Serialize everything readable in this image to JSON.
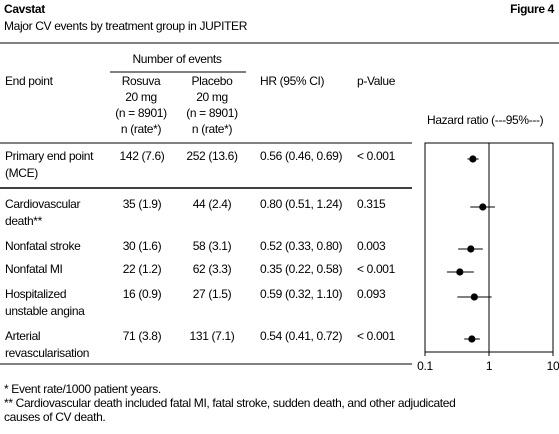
{
  "header": {
    "title": "Cavstat",
    "figure": "Figure 4",
    "subtitle": "Major CV events by treatment group in JUPITER"
  },
  "table": {
    "group_header": "Number of events",
    "columns": [
      [
        "End point"
      ],
      [
        "Rosuva",
        "20 mg",
        "(n = 8901)",
        "n (rate*)"
      ],
      [
        "Placebo",
        "20 mg",
        "(n = 8901)",
        "n (rate*)"
      ],
      [
        "HR (95% CI)"
      ],
      [
        "p-Value"
      ]
    ],
    "rows": [
      [
        [
          "Primary end point",
          "(MCE)"
        ],
        "142 (7.6)",
        "252 (13.6)",
        "0.56 (0.46, 0.69)",
        "< 0.001"
      ],
      [
        [
          "Cardiovascular",
          "death**"
        ],
        "35 (1.9)",
        "44 (2.4)",
        "0.80 (0.51, 1.24)",
        "0.315"
      ],
      [
        [
          "Nonfatal stroke"
        ],
        "30 (1.6)",
        "58 (3.1)",
        "0.52 (0.33, 0.80)",
        "0.003"
      ],
      [
        [
          "Nonfatal MI"
        ],
        "22 (1.2)",
        "62 (3.3)",
        "0.35 (0.22, 0.58)",
        "< 0.001"
      ],
      [
        [
          "Hospitalized",
          "unstable angina"
        ],
        "16 (0.9)",
        "27 (1.5)",
        "0.59 (0.32, 1.10)",
        "0.093"
      ],
      [
        [
          "Arterial",
          "revascularisation"
        ],
        "71 (3.8)",
        "131 (7.1)",
        "0.54 (0.41, 0.72)",
        "< 0.001"
      ]
    ]
  },
  "chart_data": {
    "type": "forest",
    "xlabel": "Hazard ratio (---95%---)",
    "log_scale": true,
    "xlim": [
      0.1,
      10
    ],
    "xticks": [
      0.1,
      1,
      10
    ],
    "reference_line": 1,
    "color": "#000000",
    "values": [
      0.56,
      0.8,
      0.52,
      0.35,
      0.59,
      0.54
    ],
    "lower": [
      0.46,
      0.51,
      0.33,
      0.22,
      0.32,
      0.41
    ],
    "upper": [
      0.69,
      1.24,
      0.8,
      0.58,
      1.1,
      0.72
    ]
  },
  "footnotes": [
    [
      "* Event rate/1000 patient years."
    ],
    [
      "** Cardiovascular death included fatal MI, fatal stroke, sudden death, and other adjudicated",
      "causes of CV death."
    ]
  ]
}
